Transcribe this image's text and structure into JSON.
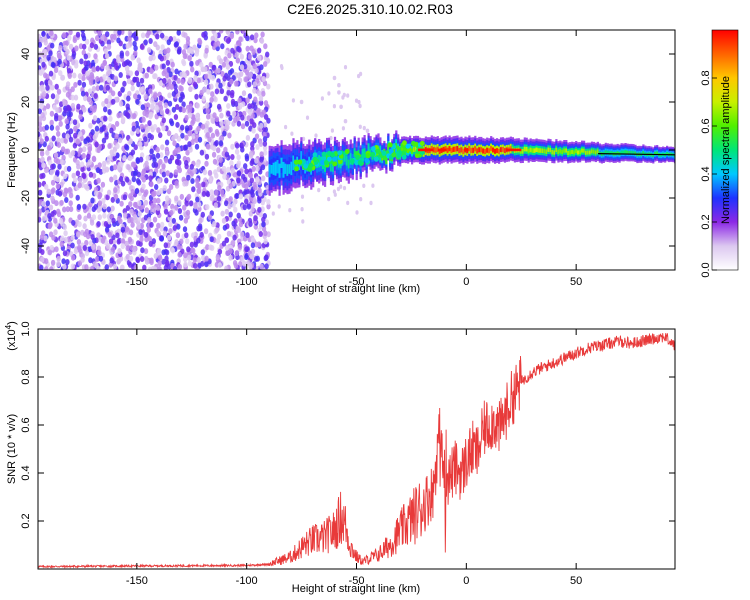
{
  "title": "C2E6.2025.310.10.02.R03",
  "colors": {
    "snr_line": "#e83a3a",
    "axis": "#000000"
  },
  "chart_data": [
    {
      "type": "heatmap",
      "name": "spectrogram",
      "xlabel": "Height of straight line (km)",
      "ylabel": "Frequency (Hz)",
      "xlim": [
        -195,
        95
      ],
      "ylim": [
        -50,
        50
      ],
      "xticks": [
        -150,
        -100,
        -50,
        0,
        50
      ],
      "xtick_labels": [
        "-150",
        "-100",
        "-50",
        "0",
        "50"
      ],
      "yticks": [
        -40,
        -20,
        0,
        20,
        40
      ],
      "ytick_labels": [
        "-40",
        "-20",
        "0",
        "20",
        "40"
      ],
      "noise_region_km": [
        -195,
        -90
      ],
      "signal_band": {
        "start_km": -90,
        "end_km": 95,
        "center_hz": [
          [
            -90,
            -8
          ],
          [
            -70,
            -5
          ],
          [
            -50,
            -3
          ],
          [
            -30,
            0
          ],
          [
            -10,
            0
          ],
          [
            20,
            0
          ],
          [
            95,
            -2
          ]
        ],
        "peak_amplitude_km": [
          -20,
          20
        ],
        "peak_amplitude": 0.98
      },
      "colorbar": {
        "label": "Normalized spectral amplitude",
        "range": [
          0,
          1
        ],
        "ticks": [
          0,
          0.2,
          0.4,
          0.6,
          0.8
        ],
        "tick_labels": [
          "0.0",
          "0.2",
          "0.4",
          "0.6",
          "0.8"
        ],
        "stops": [
          {
            "v": 0.0,
            "color": "#ffffff"
          },
          {
            "v": 0.1,
            "color": "#dcc8f0"
          },
          {
            "v": 0.2,
            "color": "#8c28e6"
          },
          {
            "v": 0.3,
            "color": "#1e32ff"
          },
          {
            "v": 0.4,
            "color": "#00c8ff"
          },
          {
            "v": 0.5,
            "color": "#00e678"
          },
          {
            "v": 0.6,
            "color": "#50f000"
          },
          {
            "v": 0.7,
            "color": "#c8f000"
          },
          {
            "v": 0.8,
            "color": "#ffc800"
          },
          {
            "v": 0.9,
            "color": "#ff6400"
          },
          {
            "v": 1.0,
            "color": "#ff0000"
          }
        ]
      }
    },
    {
      "type": "line",
      "name": "snr",
      "xlabel": "Height of straight line (km)",
      "ylabel": "SNR (10 * v/v)",
      "exponent_label": "(x10",
      "exponent_sup": "4",
      "exponent_close": ")",
      "xlim": [
        -195,
        95
      ],
      "ylim": [
        0,
        1.0
      ],
      "xticks": [
        -150,
        -100,
        -50,
        0,
        50
      ],
      "xtick_labels": [
        "-150",
        "-100",
        "-50",
        "0",
        "50"
      ],
      "yticks": [
        0.2,
        0.4,
        0.6,
        0.8,
        1.0
      ],
      "ytick_labels": [
        "0.2",
        "0.4",
        "0.6",
        "0.8",
        "1.0"
      ],
      "series": [
        {
          "name": "SNR",
          "x": [
            -195,
            -160,
            -120,
            -100,
            -90,
            -80,
            -75,
            -70,
            -65,
            -60,
            -57,
            -55,
            -53,
            -50,
            -47,
            -45,
            -40,
            -35,
            -30,
            -25,
            -20,
            -15,
            -12,
            -10,
            -8,
            -5,
            -2,
            0,
            3,
            5,
            8,
            10,
            13,
            15,
            18,
            20,
            25,
            30,
            35,
            40,
            45,
            50,
            55,
            60,
            65,
            70,
            75,
            80,
            85,
            90,
            95
          ],
          "y": [
            0.01,
            0.012,
            0.014,
            0.015,
            0.02,
            0.05,
            0.09,
            0.12,
            0.13,
            0.16,
            0.22,
            0.18,
            0.1,
            0.05,
            0.03,
            0.04,
            0.06,
            0.1,
            0.16,
            0.21,
            0.26,
            0.33,
            0.6,
            0.4,
            0.38,
            0.42,
            0.4,
            0.45,
            0.5,
            0.48,
            0.58,
            0.6,
            0.62,
            0.58,
            0.65,
            0.7,
            0.78,
            0.82,
            0.84,
            0.86,
            0.88,
            0.9,
            0.92,
            0.93,
            0.94,
            0.95,
            0.94,
            0.95,
            0.96,
            0.97,
            0.93
          ]
        }
      ]
    }
  ]
}
